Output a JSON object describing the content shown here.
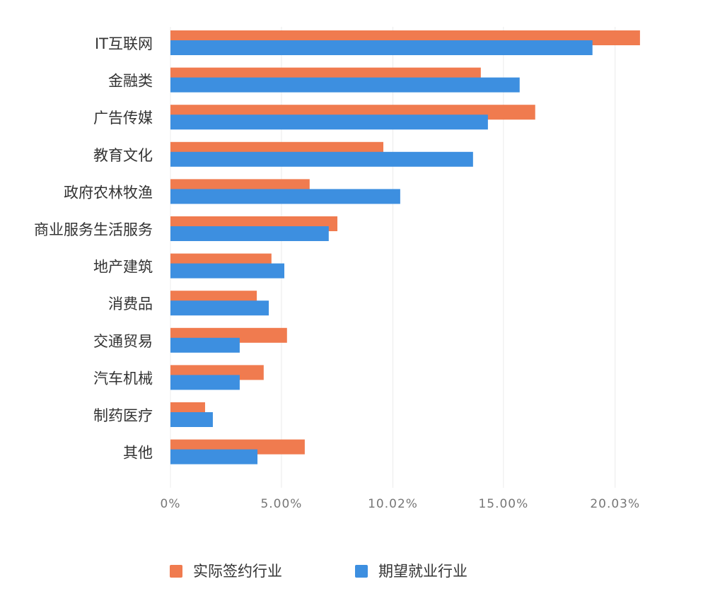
{
  "chart_data": {
    "type": "hbar",
    "categories": [
      "IT互联网",
      "金融类",
      "广告传媒",
      "教育文化",
      "政府农林牧渔",
      "商业服务生活服务",
      "地产建筑",
      "消费品",
      "交通贸易",
      "汽车机械",
      "制药医疗",
      "其他"
    ],
    "series": [
      {
        "name": "实际签约行业",
        "color": "#f07b4f",
        "values": [
          21.15,
          13.98,
          16.43,
          9.59,
          6.27,
          7.52,
          4.55,
          3.89,
          5.25,
          4.2,
          1.56,
          6.05
        ]
      },
      {
        "name": "期望就业行业",
        "color": "#3d8fe0",
        "values": [
          19.01,
          15.73,
          14.3,
          13.63,
          10.35,
          7.13,
          5.13,
          4.43,
          3.12,
          3.12,
          1.91,
          3.92
        ]
      }
    ],
    "xlim": [
      0,
      22.3
    ],
    "xticks": [
      {
        "value": 0,
        "label": "0%"
      },
      {
        "value": 5,
        "label": "5.00%"
      },
      {
        "value": 10.02,
        "label": "10.02%"
      },
      {
        "value": 15,
        "label": "15.00%"
      },
      {
        "value": 20.03,
        "label": "20.03%"
      }
    ],
    "grid": true,
    "legend": "bottom"
  }
}
